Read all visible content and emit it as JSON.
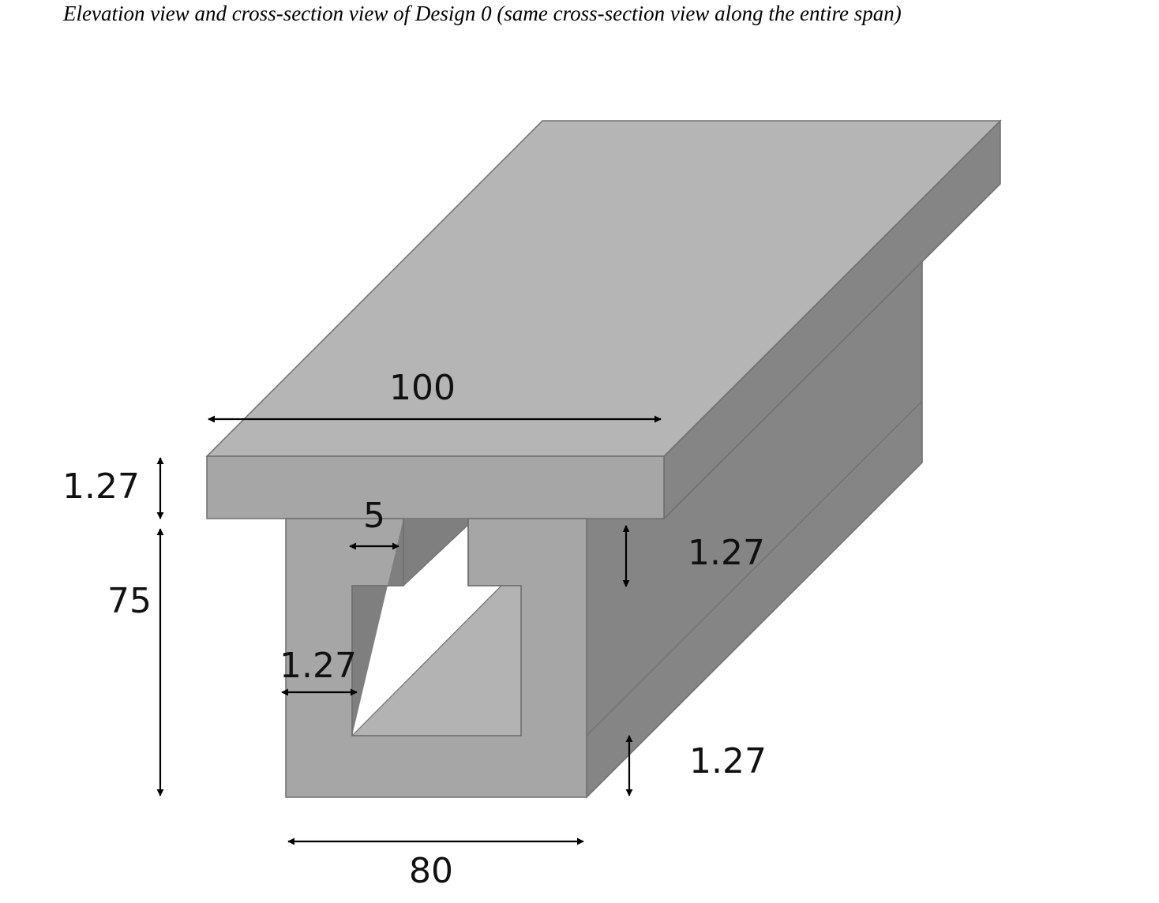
{
  "caption": "Elevation view and cross-section view of Design 0 (same cross-section view along the entire span)",
  "colors": {
    "top_face": "#b5b5b5",
    "front_face": "#a6a6a6",
    "side_face": "#858585",
    "inner_dark": "#7f7f7f",
    "inner_light": "#b3b3b3",
    "edge": "#6e6e6e",
    "dimension_line": "#000000"
  },
  "dimensions": {
    "top_flange_width": "100",
    "top_flange_thickness": "1.27",
    "total_height": "75",
    "gap_width": "5",
    "web_thickness": "1.27",
    "inner_flange_thickness": "1.27",
    "bottom_flange_thickness": "1.27",
    "bottom_width": "80"
  }
}
